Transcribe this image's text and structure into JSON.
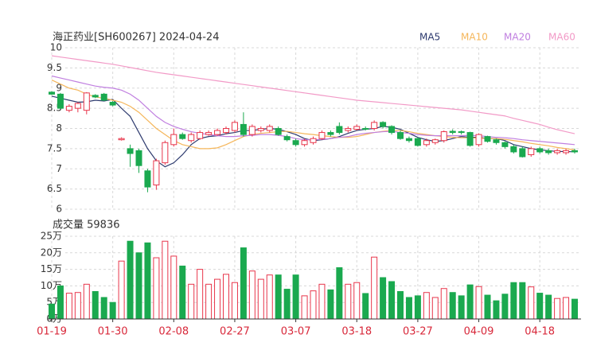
{
  "chart_data": [
    {
      "type": "candlestick",
      "title": "海正药业[SH600267] 2024-04-24",
      "up_color": "#e8364b",
      "down_color": "#1aa94f",
      "ylim": [
        6,
        10
      ],
      "yticks": [
        6,
        6.5,
        7,
        7.5,
        8,
        8.5,
        9,
        9.5,
        10
      ],
      "grid": true,
      "open": [
        8.9,
        8.85,
        8.45,
        8.5,
        8.45,
        8.82,
        8.85,
        8.65,
        7.72,
        7.5,
        7.45,
        6.95,
        6.6,
        7.15,
        7.6,
        7.85,
        7.7,
        7.75,
        7.85,
        7.85,
        7.9,
        7.95,
        8.1,
        7.85,
        7.95,
        7.95,
        8.0,
        7.8,
        7.7,
        7.6,
        7.65,
        7.75,
        7.9,
        8.05,
        7.95,
        7.98,
        8.0,
        8.0,
        8.15,
        8.05,
        7.9,
        7.75,
        7.75,
        7.6,
        7.65,
        7.7,
        7.93,
        7.92,
        7.9,
        7.6,
        7.8,
        7.72,
        7.65,
        7.55,
        7.5,
        7.35,
        7.5,
        7.45,
        7.4,
        7.4,
        7.45
      ],
      "high": [
        8.92,
        8.88,
        8.6,
        8.65,
        8.9,
        8.85,
        8.88,
        8.68,
        7.78,
        7.6,
        7.5,
        7.0,
        7.25,
        7.7,
        8.0,
        7.9,
        7.9,
        7.95,
        7.95,
        8.0,
        8.05,
        8.2,
        8.4,
        8.1,
        8.05,
        8.1,
        8.05,
        7.85,
        7.75,
        7.75,
        7.8,
        7.95,
        7.95,
        8.15,
        8.05,
        8.1,
        8.05,
        8.2,
        8.18,
        8.08,
        7.95,
        7.8,
        7.78,
        7.75,
        7.75,
        7.95,
        7.98,
        7.95,
        7.92,
        7.88,
        7.82,
        7.75,
        7.68,
        7.6,
        7.55,
        7.55,
        7.55,
        7.5,
        7.5,
        7.5,
        7.5
      ],
      "low": [
        8.83,
        8.48,
        8.4,
        8.4,
        8.35,
        8.75,
        8.68,
        8.55,
        7.7,
        7.05,
        6.9,
        6.42,
        6.48,
        7.1,
        7.55,
        7.72,
        7.65,
        7.72,
        7.82,
        7.82,
        7.85,
        7.9,
        7.8,
        7.8,
        7.9,
        7.9,
        7.82,
        7.68,
        7.55,
        7.55,
        7.6,
        7.72,
        7.8,
        7.85,
        7.9,
        7.95,
        7.95,
        7.95,
        8.0,
        7.85,
        7.72,
        7.65,
        7.55,
        7.55,
        7.6,
        7.65,
        7.85,
        7.85,
        7.55,
        7.55,
        7.65,
        7.6,
        7.5,
        7.38,
        7.28,
        7.3,
        7.38,
        7.35,
        7.35,
        7.35,
        7.38
      ],
      "close": [
        8.85,
        8.5,
        8.55,
        8.62,
        8.88,
        8.78,
        8.7,
        8.58,
        7.75,
        7.38,
        7.08,
        6.55,
        7.2,
        7.65,
        7.85,
        7.75,
        7.85,
        7.9,
        7.9,
        7.95,
        8.0,
        8.15,
        7.85,
        8.05,
        8.0,
        8.05,
        7.85,
        7.72,
        7.6,
        7.7,
        7.75,
        7.9,
        7.85,
        7.9,
        8.0,
        8.05,
        7.98,
        8.15,
        8.05,
        7.9,
        7.75,
        7.7,
        7.58,
        7.7,
        7.72,
        7.92,
        7.9,
        7.9,
        7.58,
        7.85,
        7.68,
        7.65,
        7.55,
        7.42,
        7.3,
        7.5,
        7.42,
        7.4,
        7.45,
        7.45,
        7.42
      ],
      "series": [
        {
          "name": "MA5",
          "color": "#2d3a6e",
          "values": [
            8.8,
            8.75,
            8.7,
            8.65,
            8.66,
            8.7,
            8.68,
            8.72,
            8.5,
            8.3,
            7.9,
            7.5,
            7.2,
            7.05,
            7.15,
            7.35,
            7.6,
            7.75,
            7.8,
            7.82,
            7.87,
            7.9,
            7.95,
            7.95,
            7.98,
            8.0,
            7.98,
            7.92,
            7.85,
            7.75,
            7.7,
            7.72,
            7.75,
            7.8,
            7.88,
            7.95,
            7.98,
            8.0,
            8.05,
            8.03,
            7.98,
            7.88,
            7.78,
            7.72,
            7.68,
            7.7,
            7.75,
            7.8,
            7.78,
            7.78,
            7.75,
            7.75,
            7.7,
            7.6,
            7.55,
            7.5,
            7.47,
            7.45,
            7.43,
            7.43,
            7.42
          ]
        },
        {
          "name": "MA10",
          "color": "#f5b65a",
          "values": [
            9.2,
            9.1,
            9.0,
            8.95,
            8.85,
            8.78,
            8.75,
            8.7,
            8.65,
            8.55,
            8.4,
            8.2,
            8.0,
            7.85,
            7.7,
            7.6,
            7.55,
            7.5,
            7.5,
            7.52,
            7.6,
            7.7,
            7.8,
            7.85,
            7.88,
            7.9,
            7.92,
            7.93,
            7.9,
            7.87,
            7.85,
            7.82,
            7.8,
            7.78,
            7.78,
            7.8,
            7.85,
            7.9,
            7.93,
            7.95,
            7.95,
            7.92,
            7.88,
            7.85,
            7.82,
            7.8,
            7.78,
            7.77,
            7.77,
            7.76,
            7.75,
            7.75,
            7.73,
            7.7,
            7.67,
            7.63,
            7.6,
            7.57,
            7.53,
            7.5,
            7.47
          ]
        },
        {
          "name": "MA20",
          "color": "#c07fe0",
          "values": [
            9.3,
            9.25,
            9.2,
            9.15,
            9.1,
            9.05,
            9.02,
            9.0,
            8.95,
            8.85,
            8.7,
            8.5,
            8.3,
            8.15,
            8.05,
            7.98,
            7.92,
            7.88,
            7.85,
            7.82,
            7.8,
            7.8,
            7.82,
            7.83,
            7.85,
            7.85,
            7.83,
            7.8,
            7.75,
            7.72,
            7.72,
            7.73,
            7.75,
            7.78,
            7.8,
            7.85,
            7.88,
            7.9,
            7.92,
            7.93,
            7.9,
            7.88,
            7.85,
            7.83,
            7.82,
            7.82,
            7.82,
            7.82,
            7.83,
            7.82,
            7.8,
            7.78,
            7.77,
            7.75,
            7.72,
            7.7,
            7.68,
            7.66,
            7.64,
            7.62,
            7.6
          ]
        },
        {
          "name": "MA60",
          "color": "#f29ac7",
          "values": [
            9.8,
            9.77,
            9.74,
            9.71,
            9.68,
            9.65,
            9.62,
            9.59,
            9.55,
            9.51,
            9.47,
            9.43,
            9.39,
            9.36,
            9.33,
            9.3,
            9.27,
            9.24,
            9.21,
            9.18,
            9.15,
            9.12,
            9.09,
            9.06,
            9.03,
            9.0,
            8.97,
            8.94,
            8.91,
            8.88,
            8.85,
            8.82,
            8.79,
            8.76,
            8.73,
            8.7,
            8.68,
            8.66,
            8.64,
            8.62,
            8.6,
            8.58,
            8.56,
            8.54,
            8.52,
            8.5,
            8.48,
            8.46,
            8.43,
            8.4,
            8.37,
            8.34,
            8.31,
            8.25,
            8.2,
            8.15,
            8.1,
            8.03,
            7.97,
            7.92,
            7.87
          ]
        }
      ]
    },
    {
      "type": "bar",
      "title": "成交量 59836",
      "categories": [
        "01-19",
        null,
        null,
        null,
        null,
        null,
        null,
        "01-30",
        null,
        null,
        null,
        null,
        null,
        null,
        "02-08",
        null,
        null,
        null,
        null,
        null,
        null,
        "02-27",
        null,
        null,
        null,
        null,
        null,
        null,
        "03-07",
        null,
        null,
        null,
        null,
        null,
        null,
        "03-18",
        null,
        null,
        null,
        null,
        null,
        null,
        "03-27",
        null,
        null,
        null,
        null,
        null,
        null,
        "04-09",
        null,
        null,
        null,
        null,
        null,
        null,
        "04-18",
        null,
        null,
        null,
        null
      ],
      "values": [
        4.5,
        10,
        7.8,
        8,
        10.5,
        8.3,
        6.5,
        5,
        17.5,
        23.5,
        20,
        23,
        18.5,
        23.5,
        19,
        16,
        10.5,
        15,
        10.5,
        12,
        13.5,
        11,
        21.5,
        14.5,
        12,
        13.3,
        13.3,
        9,
        13.3,
        7,
        8.5,
        10.5,
        8.8,
        15.5,
        10.5,
        11,
        7.7,
        18.7,
        12.5,
        11.3,
        8.3,
        6.5,
        7,
        8,
        6.5,
        9.2,
        8,
        7,
        10.3,
        9.8,
        7.2,
        5.5,
        7.5,
        11,
        11,
        9.7,
        7.8,
        7.2,
        6.2,
        6.5,
        5.98
      ],
      "ylim": [
        0,
        25
      ],
      "yticks": [
        {
          "value": 0,
          "label": "0万"
        },
        {
          "value": 5,
          "label": "5万"
        },
        {
          "value": 10,
          "label": "10万"
        },
        {
          "value": 15,
          "label": "15万"
        },
        {
          "value": 20,
          "label": "20万"
        },
        {
          "value": 25,
          "label": "25万"
        }
      ],
      "grid": true
    }
  ]
}
